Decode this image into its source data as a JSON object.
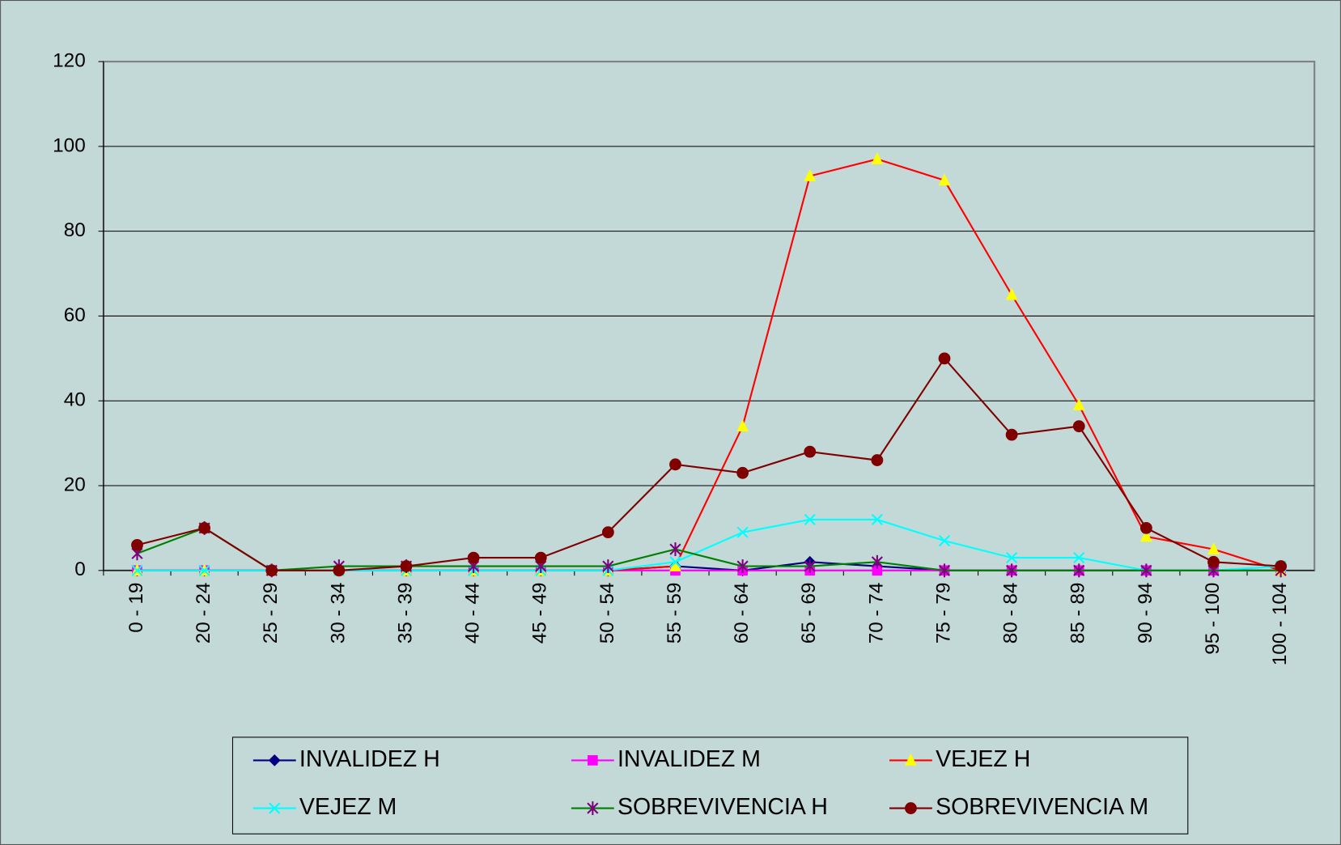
{
  "chart_data": {
    "type": "line",
    "categories": [
      "0 - 19",
      "20 - 24",
      "25 - 29",
      "30 - 34",
      "35 - 39",
      "40 - 44",
      "45 - 49",
      "50 - 54",
      "55 - 59",
      "60 - 64",
      "65 - 69",
      "70 - 74",
      "75 - 79",
      "80 - 84",
      "85 - 89",
      "90 - 94",
      "95 - 100",
      "100 - 104"
    ],
    "ylim": [
      0,
      120
    ],
    "yticks": [
      0,
      20,
      40,
      60,
      80,
      100,
      120
    ],
    "grid": true,
    "legend": "bottom",
    "series": [
      {
        "name": "INVALIDEZ H",
        "color": "#000080",
        "marker": "diamond",
        "marker_color": "#000080",
        "values": [
          0,
          0,
          0,
          0,
          0,
          0,
          0,
          0,
          1,
          0,
          2,
          1,
          0,
          0,
          0,
          0,
          0,
          0
        ]
      },
      {
        "name": "INVALIDEZ M",
        "color": "#ff00ff",
        "marker": "square",
        "marker_color": "#ff00ff",
        "values": [
          0,
          0,
          0,
          0,
          0,
          0,
          0,
          0,
          0,
          0,
          0,
          0,
          0,
          0,
          0,
          0,
          0,
          0
        ]
      },
      {
        "name": "VEJEZ H",
        "color": "#ff0000",
        "marker": "triangle",
        "marker_color": "#ffff00",
        "values": [
          0,
          0,
          0,
          0,
          0,
          0,
          0,
          0,
          1,
          34,
          93,
          97,
          92,
          65,
          39,
          8,
          5,
          0
        ]
      },
      {
        "name": "VEJEZ M",
        "color": "#00ffff",
        "marker": "x",
        "marker_color": "#00ffff",
        "values": [
          0,
          0,
          0,
          0,
          0,
          0,
          0,
          0,
          2,
          9,
          12,
          12,
          7,
          3,
          3,
          0,
          0,
          1
        ]
      },
      {
        "name": "SOBREVIVENCIA H",
        "color": "#008000",
        "marker": "asterisk",
        "marker_color": "#800080",
        "values": [
          4,
          10,
          0,
          1,
          1,
          1,
          1,
          1,
          5,
          1,
          1,
          2,
          0,
          0,
          0,
          0,
          0,
          0
        ]
      },
      {
        "name": "SOBREVIVENCIA M",
        "color": "#800000",
        "marker": "circle",
        "marker_color": "#800000",
        "values": [
          6,
          10,
          0,
          0,
          1,
          3,
          3,
          9,
          25,
          23,
          28,
          26,
          50,
          32,
          34,
          10,
          2,
          1
        ]
      }
    ]
  }
}
